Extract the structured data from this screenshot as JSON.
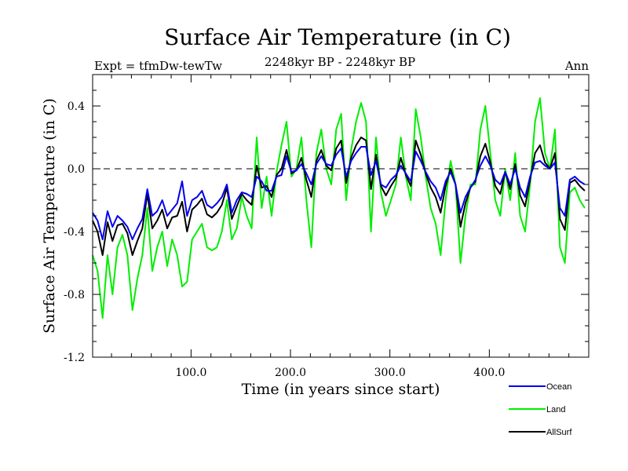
{
  "chart_data": {
    "type": "line",
    "title": "Surface Air Temperature (in C)",
    "subtitle": "2248kyr BP - 2248kyr BP",
    "experiment": "Expt = tfmDw-tewTw",
    "season": "Ann",
    "xlabel": "Time (in years since start)",
    "ylabel": "Surface Air Temperature (in C)",
    "xlim": [
      1,
      500
    ],
    "ylim": [
      -1.2,
      0.6
    ],
    "xticks": [
      100,
      200,
      300,
      400
    ],
    "xtick_labels": [
      "100.0",
      "200.0",
      "300.0",
      "400.0"
    ],
    "yticks": [
      -1.2,
      -0.8,
      -0.4,
      0.0,
      0.4
    ],
    "ytick_labels": [
      "-1.2",
      "-0.8",
      "-0.4",
      "0.0",
      "0.4"
    ],
    "reference_line": 0.0,
    "series": [
      {
        "name": "Ocean",
        "color": "#0000ee",
        "x_step": 5,
        "values": [
          -0.28,
          -0.33,
          -0.45,
          -0.27,
          -0.37,
          -0.3,
          -0.33,
          -0.37,
          -0.45,
          -0.38,
          -0.32,
          -0.13,
          -0.3,
          -0.27,
          -0.2,
          -0.3,
          -0.26,
          -0.22,
          -0.08,
          -0.3,
          -0.2,
          -0.18,
          -0.14,
          -0.23,
          -0.25,
          -0.22,
          -0.18,
          -0.1,
          -0.28,
          -0.2,
          -0.15,
          -0.16,
          -0.18,
          -0.05,
          -0.08,
          -0.14,
          -0.14,
          -0.05,
          -0.04,
          0.08,
          -0.02,
          -0.01,
          0.03,
          -0.03,
          -0.1,
          0.03,
          0.08,
          0.03,
          0.02,
          0.09,
          0.13,
          -0.05,
          0.05,
          0.1,
          0.14,
          0.14,
          -0.04,
          0.05,
          -0.1,
          -0.12,
          -0.07,
          -0.04,
          0.02,
          -0.03,
          -0.08,
          0.11,
          0.05,
          -0.02,
          -0.08,
          -0.12,
          -0.2,
          -0.08,
          -0.02,
          -0.1,
          -0.28,
          -0.18,
          -0.12,
          -0.07,
          0.02,
          0.08,
          0.02,
          -0.07,
          -0.1,
          -0.02,
          -0.1,
          0.0,
          -0.12,
          -0.18,
          -0.05,
          0.04,
          0.05,
          0.02,
          0.0,
          0.04,
          -0.25,
          -0.3,
          -0.07,
          -0.05,
          -0.08,
          -0.1
        ]
      },
      {
        "name": "Land",
        "color": "#00ee00",
        "x_step": 5,
        "values": [
          -0.55,
          -0.65,
          -0.95,
          -0.55,
          -0.8,
          -0.5,
          -0.42,
          -0.55,
          -0.9,
          -0.7,
          -0.55,
          -0.25,
          -0.65,
          -0.5,
          -0.4,
          -0.62,
          -0.45,
          -0.55,
          -0.75,
          -0.72,
          -0.45,
          -0.4,
          -0.35,
          -0.5,
          -0.52,
          -0.5,
          -0.4,
          -0.2,
          -0.45,
          -0.38,
          -0.18,
          -0.3,
          -0.38,
          0.2,
          -0.25,
          -0.05,
          -0.3,
          -0.02,
          0.15,
          0.3,
          -0.05,
          0.0,
          0.2,
          -0.2,
          -0.5,
          0.1,
          0.25,
          0.0,
          -0.1,
          0.25,
          0.35,
          -0.2,
          0.12,
          0.3,
          0.42,
          0.3,
          -0.4,
          0.2,
          -0.15,
          -0.3,
          -0.2,
          -0.1,
          0.2,
          -0.05,
          -0.2,
          0.38,
          0.2,
          -0.05,
          -0.25,
          -0.35,
          -0.55,
          -0.2,
          0.05,
          -0.1,
          -0.6,
          -0.3,
          -0.1,
          -0.1,
          0.25,
          0.4,
          0.1,
          -0.2,
          -0.3,
          0.0,
          -0.2,
          0.1,
          -0.3,
          -0.4,
          -0.1,
          0.3,
          0.45,
          0.1,
          0.0,
          0.25,
          -0.5,
          -0.6,
          -0.15,
          -0.12,
          -0.2,
          -0.25
        ]
      },
      {
        "name": "AllSurf",
        "color": "#000000",
        "x_step": 5,
        "values": [
          -0.33,
          -0.4,
          -0.55,
          -0.34,
          -0.46,
          -0.36,
          -0.35,
          -0.41,
          -0.55,
          -0.46,
          -0.38,
          -0.16,
          -0.38,
          -0.33,
          -0.26,
          -0.38,
          -0.31,
          -0.3,
          -0.21,
          -0.4,
          -0.26,
          -0.23,
          -0.19,
          -0.29,
          -0.31,
          -0.28,
          -0.23,
          -0.12,
          -0.32,
          -0.24,
          -0.16,
          -0.2,
          -0.23,
          0.02,
          -0.12,
          -0.11,
          -0.18,
          -0.04,
          0.0,
          0.12,
          -0.03,
          -0.01,
          0.07,
          -0.07,
          -0.18,
          0.05,
          0.12,
          0.02,
          -0.01,
          0.13,
          0.18,
          -0.09,
          0.07,
          0.15,
          0.2,
          0.18,
          -0.13,
          0.09,
          -0.11,
          -0.17,
          -0.11,
          -0.06,
          0.07,
          -0.04,
          -0.11,
          0.18,
          0.09,
          -0.03,
          -0.12,
          -0.18,
          -0.28,
          -0.11,
          0.0,
          -0.1,
          -0.37,
          -0.22,
          -0.12,
          -0.08,
          0.08,
          0.16,
          0.04,
          -0.11,
          -0.16,
          -0.02,
          -0.13,
          0.03,
          -0.17,
          -0.24,
          -0.07,
          0.1,
          0.15,
          0.04,
          0.0,
          0.1,
          -0.32,
          -0.39,
          -0.09,
          -0.07,
          -0.11,
          -0.14
        ]
      }
    ],
    "legend_position": "bottom-right"
  }
}
